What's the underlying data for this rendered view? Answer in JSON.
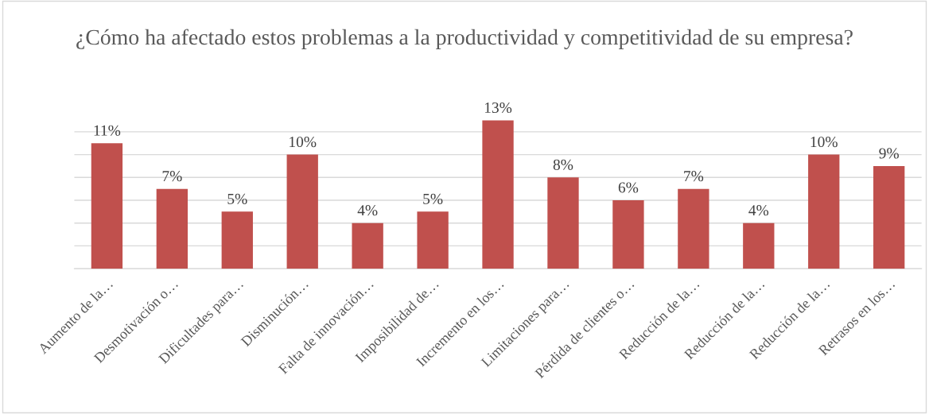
{
  "chart_data": {
    "type": "bar",
    "title": "¿Cómo ha afectado estos problemas a la productividad y competitividad de su empresa?",
    "categories": [
      "Aumento de la…",
      "Desmotivación o…",
      "Dificultades para…",
      "Disminución…",
      "Falta de innovación…",
      "Imposibilidad de…",
      "Incremento en los…",
      "Limitaciones para…",
      "Pérdida de clientes o…",
      "Reducción de la…",
      "Reducción de la…",
      "Reducción de la…",
      "Retrasos en los…"
    ],
    "values": [
      11,
      7,
      5,
      10,
      4,
      5,
      13,
      8,
      6,
      7,
      4,
      10,
      9
    ],
    "value_labels": [
      "11%",
      "7%",
      "5%",
      "10%",
      "4%",
      "5%",
      "13%",
      "8%",
      "6%",
      "7%",
      "4%",
      "10%",
      "9%"
    ],
    "color": "#c0504d",
    "yticks": [
      {
        "value": 0,
        "label": null
      },
      {
        "value": 2,
        "label": null
      },
      {
        "value": 4,
        "label": null
      },
      {
        "value": 6,
        "label": null
      },
      {
        "value": 8,
        "label": null
      },
      {
        "value": 10,
        "label": null
      },
      {
        "value": 12,
        "label": null
      }
    ],
    "tick_labels": "x",
    "grid": "y",
    "legend": false
  }
}
